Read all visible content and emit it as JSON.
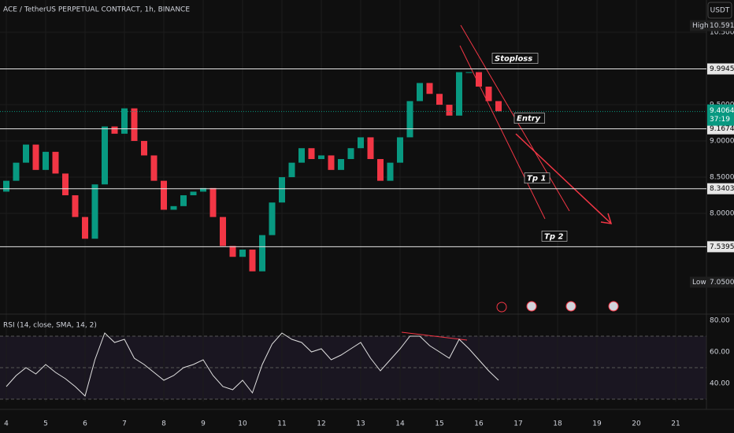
{
  "chart_data": {
    "type": "candlestick",
    "title": "ACE / TetherUS PERPETUAL CONTRACT, 1h, BINANCE",
    "currency": "USDT",
    "up_color": "#089981",
    "down_color": "#f23645",
    "x": [
      4,
      4.25,
      4.5,
      4.75,
      5,
      5.25,
      5.5,
      5.75,
      6,
      6.25,
      6.5,
      6.75,
      7,
      7.25,
      7.5,
      7.75,
      8,
      8.25,
      8.5,
      8.75,
      9,
      9.25,
      9.5,
      9.75,
      10,
      10.25,
      10.5,
      10.75,
      11,
      11.25,
      11.5,
      11.75,
      12,
      12.25,
      12.5,
      12.75,
      13,
      13.25,
      13.5,
      13.75,
      14,
      14.25,
      14.5,
      14.75,
      15,
      15.25,
      15.5,
      15.75,
      16,
      16.25,
      16.5
    ],
    "open": [
      8.3,
      8.45,
      8.7,
      8.95,
      8.6,
      8.85,
      8.55,
      8.25,
      7.95,
      7.65,
      8.4,
      9.2,
      9.1,
      9.45,
      9.0,
      8.8,
      8.45,
      8.05,
      8.1,
      8.25,
      8.3,
      8.35,
      7.95,
      7.55,
      7.4,
      7.5,
      7.2,
      7.7,
      8.15,
      8.5,
      8.7,
      8.9,
      8.75,
      8.8,
      8.6,
      8.75,
      8.9,
      9.05,
      8.75,
      8.45,
      8.7,
      9.05,
      9.55,
      9.8,
      9.65,
      9.5,
      9.35,
      9.95,
      9.95,
      9.75,
      9.55
    ],
    "high": {
      "label": "High",
      "price": 10.5912
    },
    "low": {
      "label": "Low",
      "price": {
        "value": 7.05,
        "label": "7.0500"
      }
    },
    "close": [
      8.45,
      8.7,
      8.95,
      8.6,
      8.85,
      8.55,
      8.25,
      7.95,
      7.65,
      8.4,
      9.2,
      9.1,
      9.45,
      9.0,
      8.8,
      8.45,
      8.05,
      8.1,
      8.25,
      8.3,
      8.35,
      7.95,
      7.55,
      7.4,
      7.5,
      7.2,
      7.7,
      8.15,
      8.5,
      8.7,
      8.9,
      8.75,
      8.8,
      8.6,
      8.75,
      8.9,
      9.05,
      8.75,
      8.45,
      8.7,
      9.05,
      9.55,
      9.8,
      9.65,
      9.5,
      9.35,
      9.95,
      9.95,
      9.75,
      9.55,
      9.41
    ],
    "xlim": [
      3.84,
      21.78
    ],
    "xticks": [
      4,
      5,
      6,
      7,
      8,
      9,
      10,
      11,
      12,
      13,
      14,
      15,
      16,
      17,
      18,
      19,
      20,
      21
    ],
    "ylim": [
      6.62,
      10.946
    ],
    "yticks": [
      {
        "value": 10.5,
        "label": "10.5000"
      },
      {
        "value": 9.5,
        "label": "9.5000"
      },
      {
        "value": 9,
        "label": "9.0000"
      },
      {
        "value": 8.5,
        "label": "8.5000"
      },
      {
        "value": 8,
        "label": "8.0000"
      }
    ],
    "levels": [
      {
        "name": "Stoploss",
        "price": 9.9945
      },
      {
        "name": "Entry",
        "price": 9.1674
      },
      {
        "name": "Tp 1",
        "price": 8.3403
      },
      {
        "name": "Tp 2",
        "price": 7.5395
      }
    ],
    "last": 9.4064,
    "countdown": "37:19",
    "rsi": {
      "title": "RSI (14, close, SMA, 14, 2)",
      "color": "#e0e0e0",
      "values": [
        38,
        45,
        50,
        46,
        52,
        47,
        43,
        38,
        32,
        55,
        72,
        66,
        68,
        56,
        52,
        47,
        42,
        45,
        50,
        52,
        55,
        45,
        38,
        36,
        42,
        34,
        52,
        65,
        72,
        68,
        66,
        60,
        62,
        55,
        58,
        62,
        66,
        56,
        48,
        55,
        62,
        70,
        70,
        64,
        60,
        56,
        68,
        62,
        55,
        48,
        42
      ],
      "ylim": [
        28.5,
        83.5
      ],
      "yticks": [
        {
          "value": 80,
          "label": "80.00"
        },
        {
          "value": 60,
          "label": "60.00"
        },
        {
          "value": 40,
          "label": "40.00"
        }
      ],
      "bands": [
        70,
        50,
        30
      ]
    }
  }
}
